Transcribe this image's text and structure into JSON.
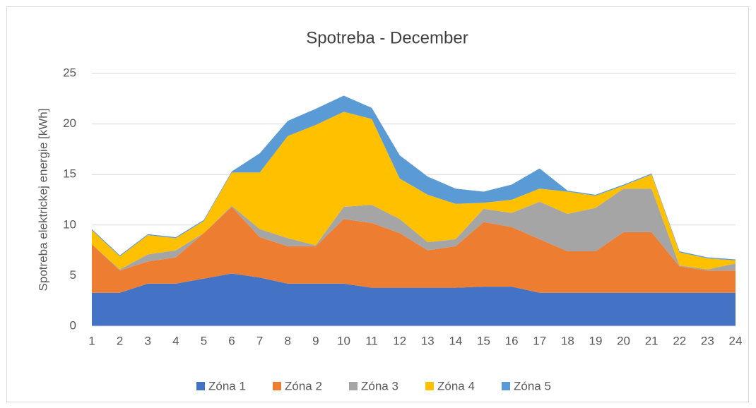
{
  "chart_data": {
    "type": "stacked_area",
    "title": "Spotreba - December",
    "y_label": "Spotreba elektrickej energie [kWh]",
    "categories": [
      1,
      2,
      3,
      4,
      5,
      6,
      7,
      8,
      9,
      10,
      11,
      12,
      13,
      14,
      15,
      16,
      17,
      18,
      19,
      20,
      21,
      22,
      23,
      24
    ],
    "series": [
      {
        "name": "Zóna 1",
        "color": "#4472c4",
        "values": [
          3.3,
          3.3,
          4.2,
          4.2,
          4.7,
          5.2,
          4.8,
          4.2,
          4.2,
          4.2,
          3.8,
          3.8,
          3.8,
          3.8,
          3.9,
          3.9,
          3.3,
          3.3,
          3.3,
          3.3,
          3.3,
          3.3,
          3.3,
          3.3
        ]
      },
      {
        "name": "Zóna 2",
        "color": "#ed7d31",
        "values": [
          4.8,
          2.2,
          2.2,
          2.6,
          4.5,
          6.6,
          4.0,
          3.7,
          3.7,
          6.4,
          6.4,
          5.4,
          3.7,
          4.1,
          6.4,
          5.9,
          5.3,
          4.1,
          4.1,
          6.0,
          6.0,
          2.6,
          2.2,
          2.2
        ]
      },
      {
        "name": "Zóna 3",
        "color": "#a5a5a5",
        "values": [
          0,
          0.1,
          0.7,
          0.7,
          0,
          0.1,
          0.8,
          0.8,
          0.1,
          1.2,
          1.8,
          1.4,
          0.8,
          0.7,
          1.3,
          1.4,
          3.7,
          3.7,
          4.3,
          4.3,
          4.3,
          0.1,
          0.1,
          0.7
        ]
      },
      {
        "name": "Zóna 4",
        "color": "#ffc000",
        "values": [
          1.4,
          1.3,
          1.9,
          1.2,
          1.2,
          3.3,
          5.6,
          10.1,
          11.9,
          9.4,
          8.5,
          4.0,
          4.7,
          3.5,
          0.6,
          1.3,
          1.3,
          2.2,
          1.2,
          0.3,
          1.4,
          1.3,
          1.1,
          0.3
        ]
      },
      {
        "name": "Zóna 5",
        "color": "#5b9bd5",
        "values": [
          0.1,
          0.1,
          0.1,
          0.1,
          0.1,
          0.1,
          1.9,
          1.5,
          1.6,
          1.6,
          1.1,
          2.3,
          1.8,
          1.5,
          1.1,
          1.5,
          2.0,
          0.1,
          0.1,
          0.1,
          0.1,
          0.1,
          0.1,
          0.1
        ]
      }
    ],
    "ylim": [
      0,
      25
    ],
    "yticks": [
      0,
      5,
      10,
      15,
      20,
      25
    ],
    "grid": true,
    "legend": "bottom"
  }
}
